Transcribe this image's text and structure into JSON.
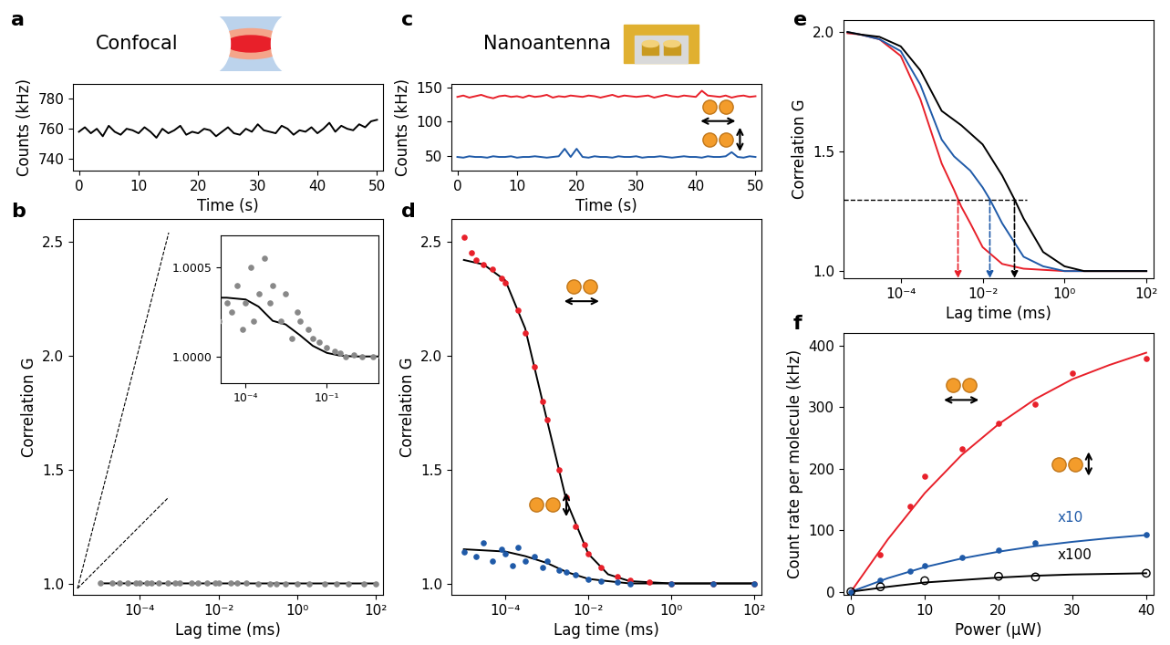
{
  "chart_data": [
    {
      "panel_label": "a",
      "type": "line",
      "title": "Confocal",
      "x_label": "Time (s)",
      "y_label": "Counts (kHz)",
      "xlim": [
        -1,
        51
      ],
      "ylim": [
        732,
        790
      ],
      "xticks": [
        0,
        10,
        20,
        30,
        40,
        50
      ],
      "yticks": [
        740,
        760,
        780
      ],
      "series": [
        {
          "type": "line",
          "color": "#000000",
          "x": [
            0,
            1,
            2,
            3,
            4,
            5,
            6,
            7,
            8,
            9,
            10,
            11,
            12,
            13,
            14,
            15,
            16,
            17,
            18,
            19,
            20,
            21,
            22,
            23,
            24,
            25,
            26,
            27,
            28,
            29,
            30,
            31,
            32,
            33,
            34,
            35,
            36,
            37,
            38,
            39,
            40,
            41,
            42,
            43,
            44,
            45,
            46,
            47,
            48,
            49,
            50
          ],
          "values": [
            758,
            761,
            757,
            760,
            755,
            762,
            758,
            756,
            760,
            759,
            757,
            761,
            758,
            754,
            760,
            757,
            759,
            762,
            756,
            758,
            757,
            760,
            759,
            755,
            758,
            761,
            757,
            756,
            760,
            758,
            763,
            759,
            758,
            757,
            762,
            760,
            756,
            759,
            758,
            761,
            757,
            760,
            764,
            758,
            762,
            760,
            759,
            763,
            761,
            765,
            766
          ]
        }
      ]
    },
    {
      "panel_label": "b",
      "type": "scatter",
      "log": "x",
      "x_label": "Lag time (ms)",
      "y_label": "Correlation G",
      "xlim": [
        2e-06,
        150
      ],
      "ylim": [
        0.95,
        2.6
      ],
      "xticks": [
        {
          "value": 0.0001,
          "label": "10⁻⁴"
        },
        {
          "value": 0.01,
          "label": "10⁻²"
        },
        {
          "value": 1,
          "label": "10⁰"
        },
        {
          "value": 100,
          "label": "10²"
        }
      ],
      "yticks": [
        {
          "value": 1,
          "label": "1.0"
        },
        1.5,
        {
          "value": 2,
          "label": "2.0"
        },
        2.5
      ],
      "series": [
        {
          "type": "scatter",
          "color": "#888888",
          "marker": "circle",
          "x": [
            1e-05,
            2e-05,
            3e-05,
            5e-05,
            8e-05,
            0.0001,
            0.00015,
            0.0002,
            0.0003,
            0.0005,
            0.0008,
            0.001,
            0.002,
            0.003,
            0.005,
            0.008,
            0.01,
            0.02,
            0.03,
            0.05,
            0.1,
            0.2,
            0.3,
            0.5,
            1,
            2,
            5,
            10,
            20,
            50,
            100
          ],
          "values": [
            1.0002,
            1.0003,
            1.00025,
            1.0004,
            1.00015,
            1.0003,
            1.0005,
            1.0002,
            1.00035,
            1.00055,
            1.0003,
            1.0004,
            1.0002,
            1.00035,
            1.0001,
            1.00025,
            1.0002,
            1.00015,
            1.0001,
            1.00008,
            1.00005,
            1.00003,
            1.00002,
            1.0,
            1.00001,
            1.0,
            1.0,
            1.0,
            1.0,
            1.0,
            1.0
          ]
        },
        {
          "type": "line",
          "color": "#000000",
          "x": [
            1e-05,
            2e-05,
            0.0001,
            0.0003,
            0.001,
            0.003,
            0.01,
            0.03,
            0.1,
            0.3,
            1,
            10,
            100
          ],
          "values": [
            1.00033,
            1.00033,
            1.00032,
            1.00028,
            1.0002,
            1.00018,
            1.00012,
            1.00006,
            1.00002,
            1.000005,
            1.0,
            1.0,
            1.0
          ]
        }
      ],
      "inset": {
        "log": "x",
        "xlim": [
          1.2e-05,
          8
        ],
        "ylim": [
          0.99985,
          1.00068
        ],
        "xticks": [
          {
            "value": 0.0001,
            "label": "10⁻⁴"
          },
          {
            "value": 0.1,
            "label": "10⁻¹"
          }
        ],
        "yticks": [
          {
            "value": 1,
            "label": "1.0000"
          },
          {
            "value": 1.0005,
            "label": "1.0005"
          }
        ]
      }
    },
    {
      "panel_label": "c",
      "type": "line",
      "title": "Nanoantenna",
      "x_label": "Time (s)",
      "y_label": "Counts (kHz)",
      "xlim": [
        -1,
        51
      ],
      "ylim": [
        28,
        155
      ],
      "xticks": [
        0,
        10,
        20,
        30,
        40,
        50
      ],
      "yticks": [
        50,
        100,
        150
      ],
      "series": [
        {
          "type": "line",
          "color": "#e8202a",
          "x": [
            0,
            1,
            2,
            3,
            4,
            5,
            6,
            7,
            8,
            9,
            10,
            11,
            12,
            13,
            14,
            15,
            16,
            17,
            18,
            19,
            20,
            21,
            22,
            23,
            24,
            25,
            26,
            27,
            28,
            29,
            30,
            31,
            32,
            33,
            34,
            35,
            36,
            37,
            38,
            39,
            40,
            41,
            42,
            43,
            44,
            45,
            46,
            47,
            48,
            49,
            50
          ],
          "values": [
            136,
            138,
            135,
            137,
            139,
            136,
            134,
            137,
            138,
            136,
            137,
            135,
            138,
            136,
            137,
            139,
            135,
            137,
            136,
            138,
            137,
            136,
            138,
            137,
            135,
            137,
            139,
            136,
            138,
            137,
            136,
            137,
            138,
            135,
            137,
            139,
            137,
            136,
            138,
            137,
            136,
            145,
            138,
            137,
            136,
            138,
            135,
            137,
            138,
            136,
            137
          ]
        },
        {
          "type": "line",
          "color": "#1f5aa8",
          "x": [
            0,
            1,
            2,
            3,
            4,
            5,
            6,
            7,
            8,
            9,
            10,
            11,
            12,
            13,
            14,
            15,
            16,
            17,
            18,
            19,
            20,
            21,
            22,
            23,
            24,
            25,
            26,
            27,
            28,
            29,
            30,
            31,
            32,
            33,
            34,
            35,
            36,
            37,
            38,
            39,
            40,
            41,
            42,
            43,
            44,
            45,
            46,
            47,
            48,
            49,
            50
          ],
          "values": [
            48,
            47,
            49,
            48,
            48,
            47,
            49,
            48,
            48,
            49,
            47,
            48,
            48,
            49,
            48,
            47,
            48,
            49,
            60,
            48,
            60,
            48,
            47,
            49,
            48,
            48,
            47,
            49,
            48,
            48,
            49,
            47,
            48,
            48,
            49,
            48,
            47,
            48,
            49,
            48,
            48,
            47,
            49,
            48,
            48,
            49,
            55,
            48,
            47,
            49,
            48
          ]
        }
      ]
    },
    {
      "panel_label": "d",
      "type": "scatter",
      "log": "x",
      "x_label": "Lag time (ms)",
      "y_label": "Correlation G",
      "xlim": [
        5e-06,
        150
      ],
      "ylim": [
        0.95,
        2.6
      ],
      "xticks": [
        {
          "value": 0.0001,
          "label": "10⁻⁴"
        },
        {
          "value": 0.01,
          "label": "10⁻²"
        },
        {
          "value": 1,
          "label": "10⁰"
        },
        {
          "value": 100,
          "label": "10²"
        }
      ],
      "yticks": [
        {
          "value": 1,
          "label": "1.0"
        },
        1.5,
        {
          "value": 2,
          "label": "2.0"
        },
        2.5
      ],
      "series": [
        {
          "type": "scatter",
          "color": "#e8202a",
          "marker": "circle",
          "x": [
            1e-05,
            1.5e-05,
            2e-05,
            3e-05,
            5e-05,
            8e-05,
            0.0001,
            0.0002,
            0.0003,
            0.0005,
            0.0008,
            0.001,
            0.002,
            0.003,
            0.005,
            0.008,
            0.01,
            0.02,
            0.05,
            0.1,
            0.3,
            1,
            10,
            100
          ],
          "values": [
            2.52,
            2.45,
            2.42,
            2.4,
            2.38,
            2.34,
            2.32,
            2.2,
            2.1,
            1.95,
            1.8,
            1.72,
            1.5,
            1.38,
            1.25,
            1.17,
            1.13,
            1.07,
            1.03,
            1.015,
            1.005,
            1.0,
            1.0,
            1.0
          ]
        },
        {
          "type": "line",
          "color": "#000000",
          "x": [
            1e-05,
            3e-05,
            0.0001,
            0.0003,
            0.001,
            0.003,
            0.01,
            0.03,
            0.1,
            1,
            100
          ],
          "values": [
            2.42,
            2.4,
            2.33,
            2.12,
            1.72,
            1.36,
            1.13,
            1.04,
            1.01,
            1.0,
            1.0
          ]
        },
        {
          "type": "scatter",
          "color": "#1f5aa8",
          "marker": "circle",
          "x": [
            1e-05,
            2e-05,
            3e-05,
            5e-05,
            8e-05,
            0.0001,
            0.00015,
            0.0002,
            0.0003,
            0.0005,
            0.0008,
            0.001,
            0.002,
            0.003,
            0.005,
            0.01,
            0.02,
            0.05,
            0.1,
            1,
            10,
            100
          ],
          "values": [
            1.14,
            1.12,
            1.18,
            1.1,
            1.15,
            1.13,
            1.08,
            1.16,
            1.1,
            1.12,
            1.07,
            1.1,
            1.06,
            1.05,
            1.04,
            1.02,
            1.01,
            1.005,
            1.0,
            1.0,
            1.0,
            1.0
          ]
        },
        {
          "type": "line",
          "color": "#000000",
          "x": [
            1e-05,
            0.0001,
            0.0003,
            0.001,
            0.003,
            0.01,
            0.03,
            0.1,
            1,
            100
          ],
          "values": [
            1.15,
            1.14,
            1.12,
            1.09,
            1.05,
            1.02,
            1.01,
            1.0,
            1.0,
            1.0
          ]
        }
      ]
    },
    {
      "panel_label": "e",
      "type": "line",
      "log": "x",
      "x_label": "Lag time (ms)",
      "y_label": "Correlation G",
      "xlim": [
        4e-06,
        150
      ],
      "ylim": [
        0.97,
        2.05
      ],
      "xticks": [
        {
          "value": 0.0001,
          "label": "10⁻⁴"
        },
        {
          "value": 0.01,
          "label": "10⁻²"
        },
        {
          "value": 1,
          "label": "10⁰"
        },
        {
          "value": 100,
          "label": "10²"
        }
      ],
      "yticks": [
        {
          "value": 1,
          "label": "1.0"
        },
        1.5,
        {
          "value": 2,
          "label": "2.0"
        }
      ],
      "series": [
        {
          "type": "line",
          "color": "#e8202a",
          "x": [
            5e-06,
            1e-05,
            3e-05,
            0.0001,
            0.0003,
            0.001,
            0.002,
            0.003,
            0.005,
            0.01,
            0.03,
            0.1,
            1,
            100
          ],
          "values": [
            1.995,
            1.99,
            1.97,
            1.9,
            1.72,
            1.45,
            1.34,
            1.27,
            1.2,
            1.1,
            1.03,
            1.01,
            1.0,
            1.0
          ]
        },
        {
          "type": "line",
          "color": "#1f5aa8",
          "x": [
            5e-06,
            1e-05,
            3e-05,
            0.0001,
            0.0003,
            0.001,
            0.002,
            0.005,
            0.01,
            0.015,
            0.03,
            0.1,
            0.3,
            1,
            100
          ],
          "values": [
            2.0,
            1.99,
            1.97,
            1.92,
            1.78,
            1.55,
            1.48,
            1.42,
            1.35,
            1.3,
            1.2,
            1.06,
            1.02,
            1.0,
            1.0
          ]
        },
        {
          "type": "line",
          "color": "#000000",
          "x": [
            5e-06,
            1e-05,
            3e-05,
            0.0001,
            0.0003,
            0.001,
            0.003,
            0.01,
            0.03,
            0.06,
            0.1,
            0.3,
            1,
            3,
            100
          ],
          "values": [
            2.0,
            1.99,
            1.98,
            1.94,
            1.84,
            1.67,
            1.61,
            1.53,
            1.4,
            1.3,
            1.22,
            1.08,
            1.02,
            1.0,
            1.0
          ]
        }
      ],
      "reference_line": {
        "y": 1.3,
        "x_end": 0.12
      },
      "arrows": [
        {
          "x": 0.0025,
          "color": "#e8202a"
        },
        {
          "x": 0.015,
          "color": "#1f5aa8"
        },
        {
          "x": 0.06,
          "color": "#000000"
        }
      ]
    },
    {
      "panel_label": "f",
      "type": "scatter",
      "x_label": "Power (µW)",
      "y_label": "Count rate per molecule (kHz)",
      "xlim": [
        -1,
        41
      ],
      "ylim": [
        -5,
        420
      ],
      "xticks": [
        0,
        10,
        20,
        30,
        40
      ],
      "yticks": [
        0,
        100,
        200,
        300,
        400
      ],
      "series": [
        {
          "type": "scatter",
          "color": "#e8202a",
          "marker": "circle",
          "x": [
            4,
            8,
            10,
            15,
            20,
            25,
            30,
            40
          ],
          "values": [
            60,
            138,
            187,
            232,
            273,
            305,
            355,
            378
          ]
        },
        {
          "type": "line",
          "color": "#e8202a",
          "x": [
            0,
            5,
            10,
            15,
            20,
            25,
            30,
            35,
            40
          ],
          "values": [
            0,
            85,
            160,
            222,
            272,
            313,
            345,
            368,
            388
          ]
        },
        {
          "type": "scatter",
          "color": "#1f5aa8",
          "marker": "circle",
          "x": [
            0,
            4,
            8,
            10,
            15,
            20,
            25,
            40
          ],
          "values": [
            0,
            18,
            33,
            42,
            55,
            68,
            80,
            92
          ]
        },
        {
          "type": "line",
          "color": "#1f5aa8",
          "x": [
            0,
            5,
            10,
            15,
            20,
            25,
            30,
            35,
            40
          ],
          "values": [
            0,
            22,
            40,
            54,
            65,
            74,
            81,
            87,
            92
          ]
        },
        {
          "type": "scatter",
          "color": "#000000",
          "marker": "open_circle",
          "x": [
            0,
            4,
            10,
            20,
            25,
            40
          ],
          "values": [
            0,
            8,
            18,
            25,
            24,
            30
          ]
        },
        {
          "type": "line",
          "color": "#000000",
          "x": [
            0,
            5,
            10,
            15,
            20,
            25,
            30,
            35,
            40
          ],
          "values": [
            0,
            8,
            15,
            19,
            23,
            26,
            28,
            29,
            30
          ]
        }
      ],
      "annotations": [
        {
          "text": "x10",
          "x": 28,
          "y": 114,
          "color": "#1f5aa8"
        },
        {
          "text": "x100",
          "x": 28,
          "y": 53,
          "color": "#000000"
        }
      ]
    }
  ]
}
